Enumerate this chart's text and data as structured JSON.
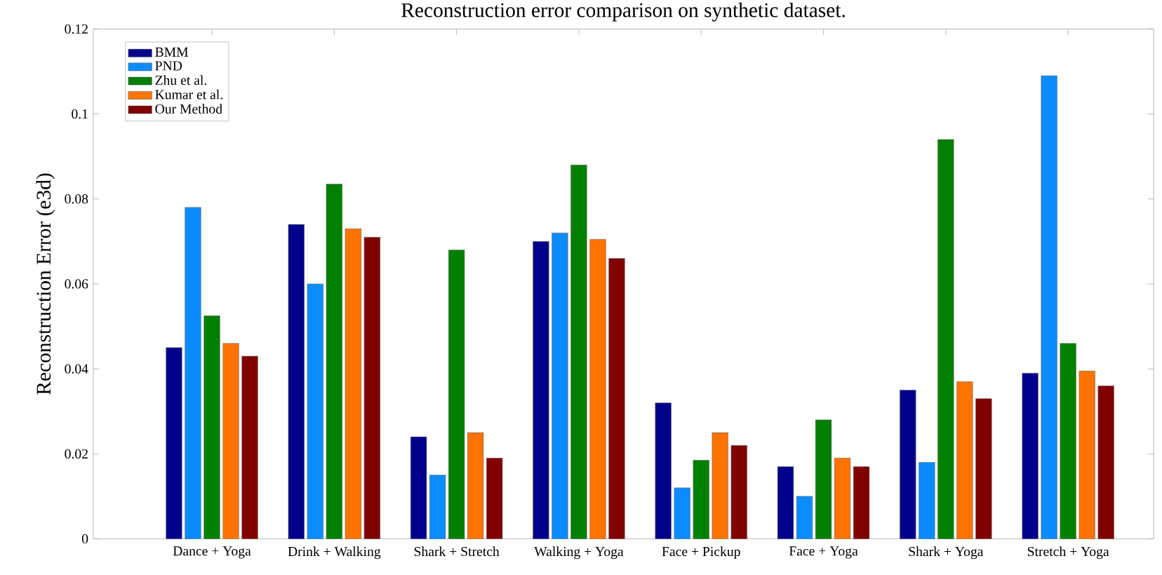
{
  "chart_data": {
    "type": "bar",
    "title": "Reconstruction error comparison on synthetic dataset.",
    "ylabel": "Reconstruction Error (e3d)",
    "categories": [
      "Dance + Yoga",
      "Drink + Walking",
      "Shark + Stretch",
      "Walking + Yoga",
      "Face + Pickup",
      "Face + Yoga",
      "Shark + Yoga",
      "Stretch + Yoga"
    ],
    "series": [
      {
        "name": "BMM",
        "color": "#00008b",
        "values": [
          0.045,
          0.074,
          0.024,
          0.07,
          0.032,
          0.017,
          0.035,
          0.039
        ]
      },
      {
        "name": "PND",
        "color": "#0a8cff",
        "values": [
          0.078,
          0.06,
          0.015,
          0.072,
          0.012,
          0.01,
          0.018,
          0.109
        ]
      },
      {
        "name": "Zhu et al.",
        "color": "#007f00",
        "values": [
          0.0525,
          0.0835,
          0.068,
          0.088,
          0.0185,
          0.028,
          0.094,
          0.046
        ]
      },
      {
        "name": "Kumar et al.",
        "color": "#ff7300",
        "values": [
          0.046,
          0.073,
          0.025,
          0.0705,
          0.025,
          0.019,
          0.037,
          0.0395
        ]
      },
      {
        "name": "Our Method",
        "color": "#800000",
        "values": [
          0.043,
          0.071,
          0.019,
          0.066,
          0.022,
          0.017,
          0.033,
          0.036
        ]
      }
    ],
    "ylim": [
      0,
      0.12
    ],
    "yticks": [
      0,
      0.02,
      0.04,
      0.06,
      0.08,
      0.1,
      0.12
    ],
    "legend": "top left",
    "grid": false
  }
}
